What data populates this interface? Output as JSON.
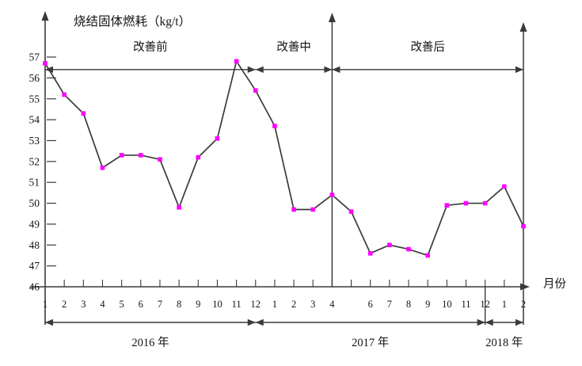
{
  "chart_data": {
    "type": "line",
    "title": "烧结固体燃耗（kg/t）",
    "xlabel": "月份",
    "ylim": [
      46,
      57
    ],
    "y_ticks": [
      46,
      47,
      48,
      49,
      50,
      51,
      52,
      53,
      54,
      55,
      56,
      57
    ],
    "grid": "off",
    "legend": "none",
    "line_color": "#3a3a3a",
    "marker_color": "#ff00ff",
    "marker_shape": "square",
    "reference_line_y": 56.4,
    "x_tick_labels": [
      "1",
      "2",
      "3",
      "4",
      "5",
      "6",
      "7",
      "8",
      "9",
      "10",
      "11",
      "12",
      "1",
      "2",
      "3",
      "4",
      "",
      "6",
      "7",
      "8",
      "9",
      "10",
      "11",
      "12",
      "1",
      "2"
    ],
    "values": [
      56.7,
      55.2,
      54.3,
      51.7,
      52.3,
      52.3,
      52.1,
      49.8,
      52.2,
      53.1,
      56.8,
      55.4,
      53.7,
      49.7,
      49.7,
      50.4,
      49.6,
      47.6,
      48.0,
      47.8,
      47.5,
      49.9,
      50.0,
      50.0,
      50.8,
      48.9
    ],
    "phases": [
      {
        "label": "改善前",
        "from_index": 0,
        "to_index": 11
      },
      {
        "label": "改善中",
        "from_index": 11,
        "to_index": 15
      },
      {
        "label": "改善后",
        "from_index": 15,
        "to_index": 25
      }
    ],
    "years": [
      {
        "label": "2016 年",
        "from_index": 0,
        "to_index": 11
      },
      {
        "label": "2017 年",
        "from_index": 11,
        "to_index": 23
      },
      {
        "label": "2018 年",
        "from_index": 23,
        "to_index": 25
      }
    ]
  }
}
